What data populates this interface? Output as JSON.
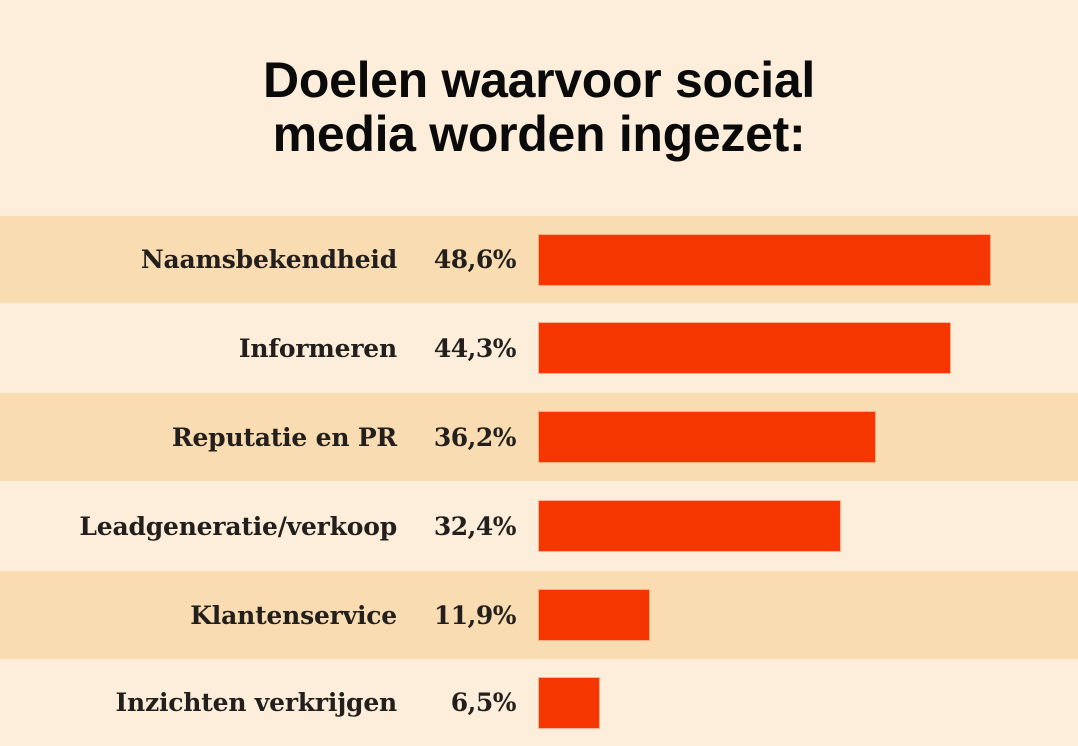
{
  "chart_data": {
    "type": "bar",
    "orientation": "horizontal",
    "title": "Doelen waarvoor social media worden ingezet:",
    "title_lines": [
      "Doelen waarvoor social",
      "media worden ingezet:"
    ],
    "categories": [
      "Naamsbekendheid",
      "Informeren",
      "Reputatie en PR",
      "Leadgeneratie/verkoop",
      "Klantenservice",
      "Inzichten verkrijgen"
    ],
    "values": [
      48.6,
      44.3,
      36.2,
      32.4,
      11.9,
      6.5
    ],
    "value_labels": [
      "48,6%",
      "44,3%",
      "36,2%",
      "32,4%",
      "11,9%",
      "6,5%"
    ],
    "unit": "%",
    "xlabel": "",
    "ylabel": "",
    "grid": false,
    "legend": "none",
    "colors": {
      "bar": "#F53600",
      "background": "#FCEEDB",
      "band": "#F9DCB1",
      "text": "#231F1C"
    }
  }
}
